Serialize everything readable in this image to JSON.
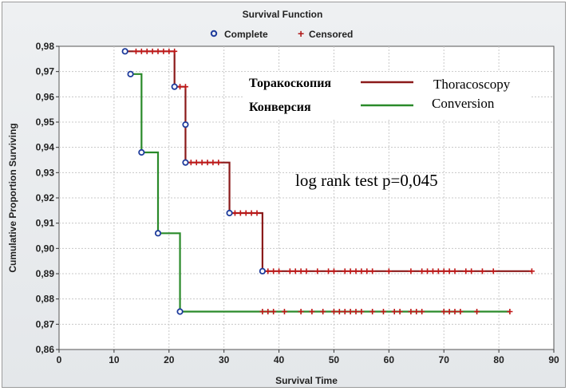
{
  "colors": {
    "thoracoscopy": "#8b1a1a",
    "conversion": "#2a8a2a",
    "complete_marker": "#1f3c9c"
  },
  "chart_data": {
    "type": "line",
    "title": "Survival Function",
    "xlabel": "Survival Time",
    "ylabel": "Cumulative Proportion Surviving",
    "xlim": [
      0,
      90
    ],
    "ylim": [
      0.86,
      0.98
    ],
    "xticks": [
      "0",
      "10",
      "20",
      "30",
      "40",
      "50",
      "60",
      "70",
      "80",
      "90"
    ],
    "yticks": [
      "0,86",
      "0,87",
      "0,88",
      "0,89",
      "0,90",
      "0,91",
      "0,92",
      "0,93",
      "0,94",
      "0,95",
      "0,96",
      "0,97",
      "0,98"
    ],
    "grid": true,
    "legend": {
      "position": "top",
      "complete_label": "Complete",
      "censored_label": "Censored"
    },
    "series": [
      {
        "name": "Торакоскопия",
        "name_alt": "Thoracoscopy",
        "color": "#8b1a1a",
        "steps": [
          [
            12,
            0.978
          ],
          [
            21,
            0.964
          ],
          [
            23,
            0.949
          ],
          [
            23,
            0.934
          ],
          [
            31,
            0.914
          ],
          [
            37,
            0.891
          ],
          [
            86,
            0.891
          ]
        ],
        "complete": [
          [
            12,
            0.978
          ],
          [
            21,
            0.964
          ],
          [
            23,
            0.949
          ],
          [
            23,
            0.934
          ],
          [
            31,
            0.914
          ],
          [
            37,
            0.891
          ]
        ],
        "censored": [
          [
            14,
            0.978
          ],
          [
            15,
            0.978
          ],
          [
            16,
            0.978
          ],
          [
            17,
            0.978
          ],
          [
            18,
            0.978
          ],
          [
            19,
            0.978
          ],
          [
            20,
            0.978
          ],
          [
            21,
            0.978
          ],
          [
            22,
            0.964
          ],
          [
            23,
            0.964
          ],
          [
            24,
            0.934
          ],
          [
            25,
            0.934
          ],
          [
            26,
            0.934
          ],
          [
            27,
            0.934
          ],
          [
            28,
            0.934
          ],
          [
            29,
            0.934
          ],
          [
            32,
            0.914
          ],
          [
            33,
            0.914
          ],
          [
            34,
            0.914
          ],
          [
            35,
            0.914
          ],
          [
            36,
            0.914
          ],
          [
            38,
            0.891
          ],
          [
            39,
            0.891
          ],
          [
            40,
            0.891
          ],
          [
            42,
            0.891
          ],
          [
            43,
            0.891
          ],
          [
            44,
            0.891
          ],
          [
            45,
            0.891
          ],
          [
            47,
            0.891
          ],
          [
            49,
            0.891
          ],
          [
            50,
            0.891
          ],
          [
            52,
            0.891
          ],
          [
            53,
            0.891
          ],
          [
            54,
            0.891
          ],
          [
            55,
            0.891
          ],
          [
            56,
            0.891
          ],
          [
            57,
            0.891
          ],
          [
            60,
            0.891
          ],
          [
            64,
            0.891
          ],
          [
            66,
            0.891
          ],
          [
            67,
            0.891
          ],
          [
            68,
            0.891
          ],
          [
            69,
            0.891
          ],
          [
            70,
            0.891
          ],
          [
            71,
            0.891
          ],
          [
            72,
            0.891
          ],
          [
            74,
            0.891
          ],
          [
            75,
            0.891
          ],
          [
            77,
            0.891
          ],
          [
            79,
            0.891
          ],
          [
            86,
            0.891
          ]
        ]
      },
      {
        "name": "Конверсия",
        "name_alt": "Conversion",
        "color": "#2a8a2a",
        "steps": [
          [
            13,
            0.969
          ],
          [
            15,
            0.938
          ],
          [
            18,
            0.906
          ],
          [
            22,
            0.875
          ],
          [
            82,
            0.875
          ]
        ],
        "complete": [
          [
            13,
            0.969
          ],
          [
            15,
            0.938
          ],
          [
            18,
            0.906
          ],
          [
            22,
            0.875
          ]
        ],
        "censored": [
          [
            37,
            0.875
          ],
          [
            38,
            0.875
          ],
          [
            39,
            0.875
          ],
          [
            41,
            0.875
          ],
          [
            44,
            0.875
          ],
          [
            46,
            0.875
          ],
          [
            48,
            0.875
          ],
          [
            50,
            0.875
          ],
          [
            51,
            0.875
          ],
          [
            52,
            0.875
          ],
          [
            53,
            0.875
          ],
          [
            54,
            0.875
          ],
          [
            55,
            0.875
          ],
          [
            57,
            0.875
          ],
          [
            59,
            0.875
          ],
          [
            61,
            0.875
          ],
          [
            62,
            0.875
          ],
          [
            64,
            0.875
          ],
          [
            65,
            0.875
          ],
          [
            66,
            0.875
          ],
          [
            70,
            0.875
          ],
          [
            71,
            0.875
          ],
          [
            72,
            0.875
          ],
          [
            73,
            0.875
          ],
          [
            76,
            0.875
          ],
          [
            82,
            0.875
          ]
        ]
      }
    ],
    "annotation": "log rank test p=0,045"
  }
}
